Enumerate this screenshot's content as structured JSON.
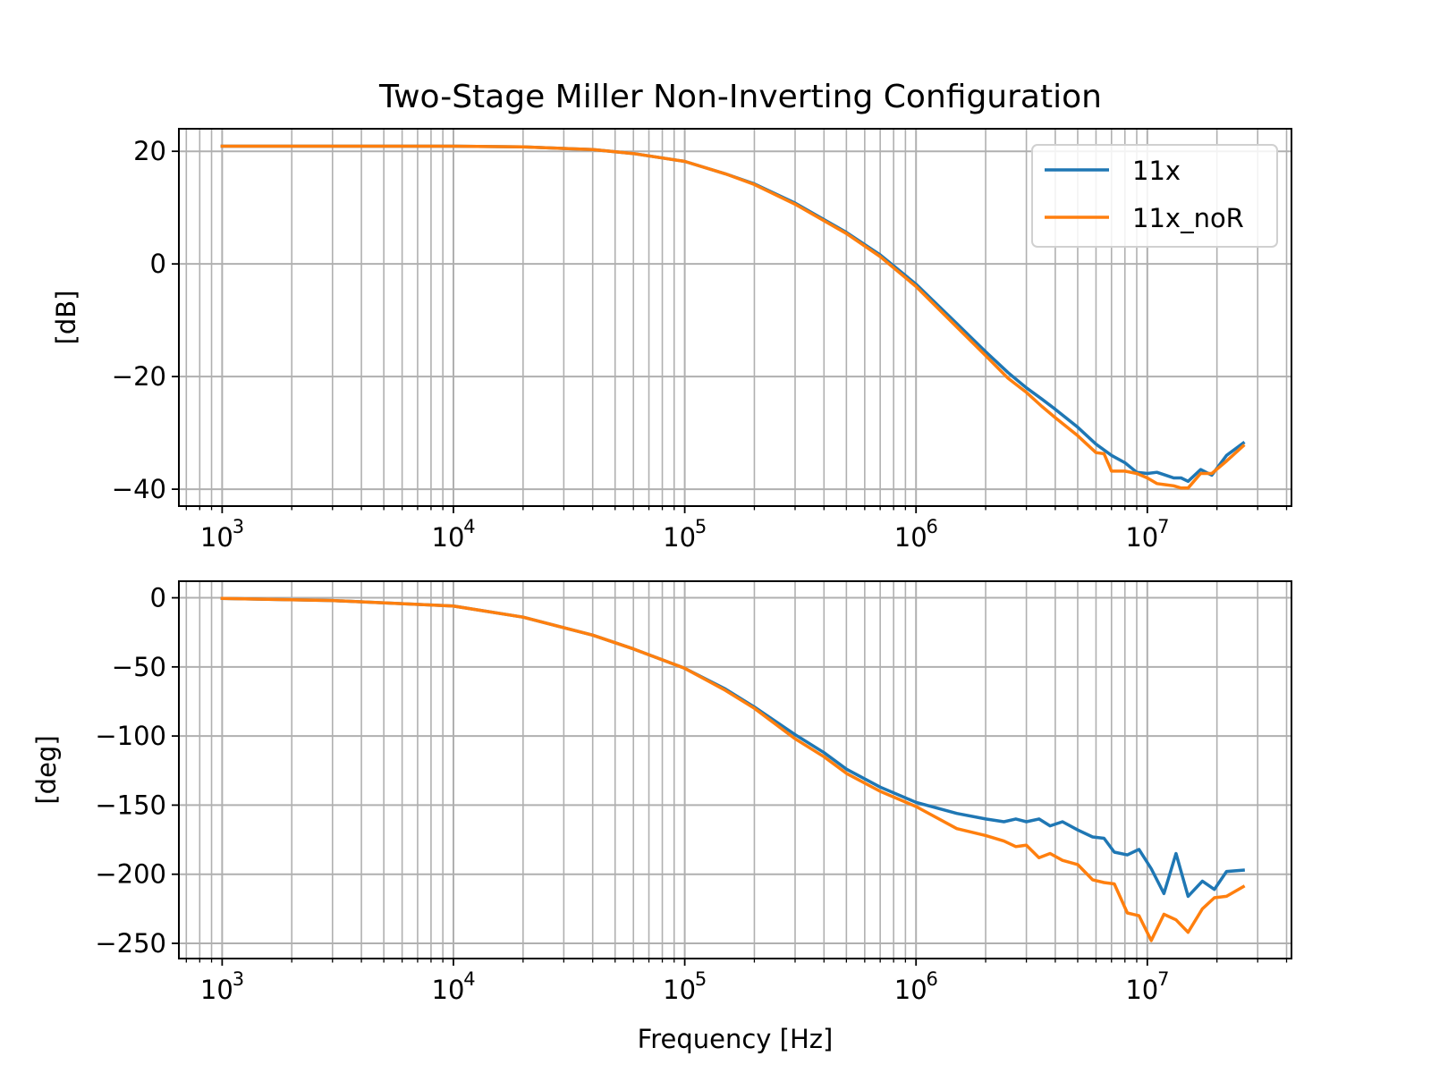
{
  "chart_data": [
    {
      "type": "line",
      "title": "Two-Stage Miller Non-Inverting Configuration",
      "xlabel": "",
      "ylabel": "[dB]",
      "xscale": "log",
      "xlim": [
        650,
        42000000
      ],
      "ylim": [
        -43,
        24
      ],
      "yticks": [
        20,
        0,
        -20,
        -40
      ],
      "ytick_labels": [
        "20",
        "0",
        "−20",
        "−40"
      ],
      "xticks": [
        1000,
        10000,
        100000,
        1000000,
        10000000
      ],
      "xtick_labels": [
        {
          "base": "10",
          "exp": "3"
        },
        {
          "base": "10",
          "exp": "4"
        },
        {
          "base": "10",
          "exp": "5"
        },
        {
          "base": "10",
          "exp": "6"
        },
        {
          "base": "10",
          "exp": "7"
        }
      ],
      "grid": "both (major and minor)",
      "legend": "top-right",
      "series": [
        {
          "name": "11x",
          "color": "#1f77b4",
          "x": [
            1000,
            3000,
            10000,
            20000,
            40000,
            60000,
            100000,
            150000,
            200000,
            300000,
            500000,
            700000,
            1000000,
            1500000,
            2000000,
            2500000,
            3000000,
            3500000,
            4000000,
            5000000,
            6000000,
            7000000,
            8000000,
            9000000,
            10000000,
            11000000,
            12000000,
            13000000,
            14000000,
            15000000,
            17000000,
            19000000,
            22000000,
            26000000
          ],
          "y": [
            20.9,
            20.9,
            20.9,
            20.8,
            20.3,
            19.6,
            18.2,
            16.0,
            14.2,
            10.8,
            5.6,
            1.6,
            -3.6,
            -10.6,
            -15.6,
            -19.3,
            -22.0,
            -24.0,
            -25.8,
            -29.0,
            -32.0,
            -34.0,
            -35.3,
            -37.0,
            -37.2,
            -37.0,
            -37.5,
            -38.0,
            -38.0,
            -38.6,
            -36.5,
            -37.5,
            -34.0,
            -31.8
          ]
        },
        {
          "name": "11x_noR",
          "color": "#ff7f0e",
          "x": [
            1000,
            3000,
            10000,
            20000,
            40000,
            60000,
            100000,
            150000,
            200000,
            300000,
            500000,
            700000,
            1000000,
            1500000,
            2000000,
            2500000,
            3000000,
            3500000,
            4000000,
            5000000,
            6000000,
            6500000,
            7000000,
            8000000,
            9000000,
            10000000,
            11000000,
            12000000,
            13000000,
            14000000,
            15000000,
            17000000,
            19000000,
            22000000,
            26000000
          ],
          "y": [
            20.9,
            20.9,
            20.9,
            20.8,
            20.3,
            19.6,
            18.2,
            16.0,
            14.1,
            10.6,
            5.4,
            1.3,
            -4.0,
            -11.2,
            -16.3,
            -20.3,
            -22.8,
            -25.3,
            -27.3,
            -30.5,
            -33.5,
            -33.7,
            -36.8,
            -36.8,
            -37.2,
            -38.0,
            -39.0,
            -39.2,
            -39.4,
            -39.8,
            -39.8,
            -37.2,
            -37.2,
            -35.0,
            -32.3
          ]
        }
      ]
    },
    {
      "type": "line",
      "title": "",
      "xlabel": "Frequency [Hz]",
      "ylabel": "[deg]",
      "xscale": "log",
      "xlim": [
        650,
        42000000
      ],
      "ylim": [
        -261,
        12
      ],
      "yticks": [
        0,
        -50,
        -100,
        -150,
        -200,
        -250
      ],
      "ytick_labels": [
        "0",
        "−50",
        "−100",
        "−150",
        "−200",
        "−250"
      ],
      "xticks": [
        1000,
        10000,
        100000,
        1000000,
        10000000
      ],
      "xtick_labels": [
        {
          "base": "10",
          "exp": "3"
        },
        {
          "base": "10",
          "exp": "4"
        },
        {
          "base": "10",
          "exp": "5"
        },
        {
          "base": "10",
          "exp": "6"
        },
        {
          "base": "10",
          "exp": "7"
        }
      ],
      "grid": "both (major and minor)",
      "legend": "none",
      "series": [
        {
          "name": "11x",
          "color": "#1f77b4",
          "x": [
            1000,
            3000,
            10000,
            20000,
            40000,
            60000,
            100000,
            150000,
            200000,
            300000,
            400000,
            500000,
            700000,
            1000000,
            1500000,
            2000000,
            2400000,
            2700000,
            3000000,
            3400000,
            3800000,
            4300000,
            5000000,
            5800000,
            6500000,
            7200000,
            8200000,
            9200000,
            10400000,
            11800000,
            13300000,
            15000000,
            17300000,
            19500000,
            22000000,
            26000000
          ],
          "y": [
            -0.5,
            -2,
            -6,
            -14,
            -27,
            -37,
            -51,
            -66,
            -79,
            -99,
            -112,
            -124,
            -137,
            -148,
            -156,
            -160,
            -162,
            -160,
            -162,
            -160,
            -165,
            -162,
            -168,
            -173,
            -174,
            -184,
            -186,
            -182,
            -196,
            -214,
            -185,
            -216,
            -205,
            -211,
            -198,
            -197
          ]
        },
        {
          "name": "11x_noR",
          "color": "#ff7f0e",
          "x": [
            1000,
            3000,
            10000,
            20000,
            40000,
            60000,
            100000,
            150000,
            200000,
            300000,
            400000,
            500000,
            700000,
            1000000,
            1500000,
            2000000,
            2400000,
            2700000,
            3000000,
            3400000,
            3800000,
            4300000,
            5000000,
            5800000,
            6500000,
            7200000,
            8200000,
            9200000,
            10400000,
            11800000,
            13300000,
            15000000,
            17300000,
            19500000,
            22000000,
            26000000
          ],
          "y": [
            -0.5,
            -2,
            -6,
            -14,
            -27,
            -37,
            -51,
            -67,
            -80,
            -102,
            -115,
            -127,
            -140,
            -151,
            -167,
            -172,
            -176,
            -180,
            -179,
            -188,
            -185,
            -190,
            -193,
            -204,
            -206,
            -207,
            -228,
            -230,
            -248,
            -229,
            -233,
            -242,
            -225,
            -217,
            -216,
            -209
          ]
        }
      ]
    }
  ]
}
